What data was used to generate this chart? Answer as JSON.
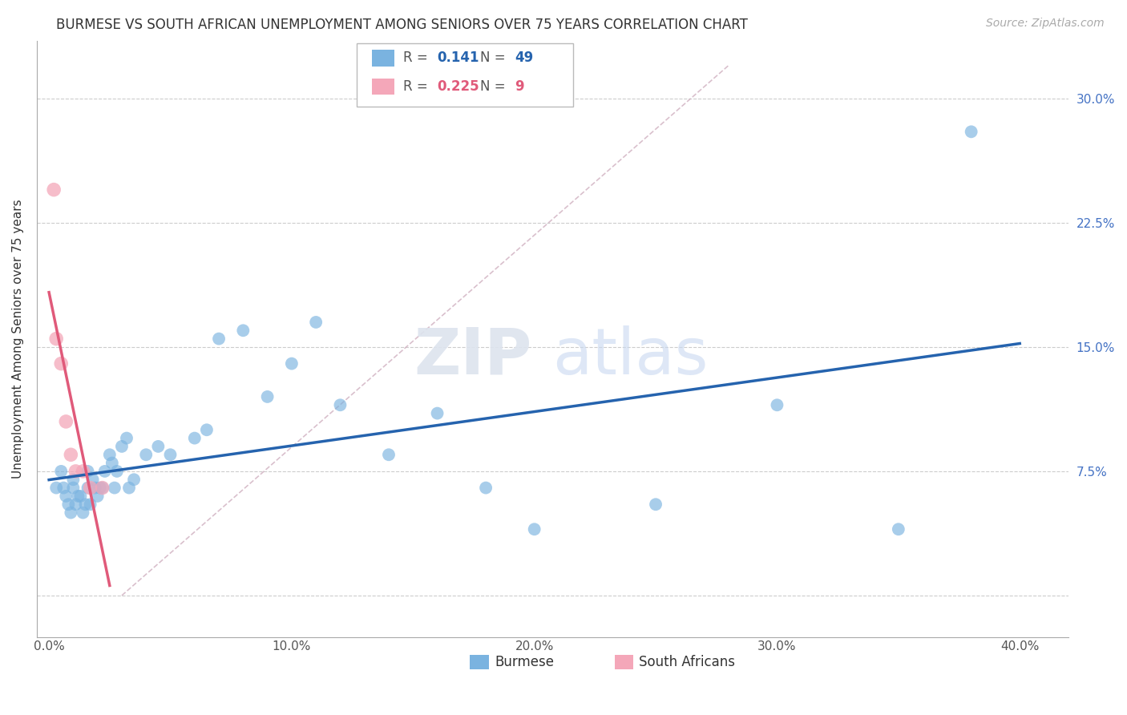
{
  "title": "BURMESE VS SOUTH AFRICAN UNEMPLOYMENT AMONG SENIORS OVER 75 YEARS CORRELATION CHART",
  "source": "Source: ZipAtlas.com",
  "ylabel": "Unemployment Among Seniors over 75 years",
  "x_ticks": [
    0.0,
    0.1,
    0.2,
    0.3,
    0.4
  ],
  "x_tick_labels": [
    "0.0%",
    "10.0%",
    "20.0%",
    "30.0%",
    "40.0%"
  ],
  "y_ticks": [
    0.0,
    0.075,
    0.15,
    0.225,
    0.3
  ],
  "y_tick_labels": [
    "",
    "7.5%",
    "15.0%",
    "22.5%",
    "30.0%"
  ],
  "xlim": [
    -0.005,
    0.42
  ],
  "ylim": [
    -0.025,
    0.335
  ],
  "R_burmese": 0.141,
  "N_burmese": 49,
  "R_south_african": 0.225,
  "N_south_african": 9,
  "burmese_color": "#7ab3e0",
  "south_african_color": "#f4a7b9",
  "burmese_line_color": "#2563ae",
  "south_african_line_color": "#e05a7a",
  "diagonal_color": "#d0b0c0",
  "watermark_zip": "ZIP",
  "watermark_atlas": "atlas",
  "background_color": "#ffffff",
  "burmese_x": [
    0.003,
    0.005,
    0.006,
    0.007,
    0.008,
    0.009,
    0.01,
    0.01,
    0.011,
    0.012,
    0.013,
    0.014,
    0.015,
    0.016,
    0.016,
    0.017,
    0.018,
    0.019,
    0.02,
    0.021,
    0.022,
    0.023,
    0.025,
    0.026,
    0.027,
    0.028,
    0.03,
    0.032,
    0.033,
    0.035,
    0.04,
    0.045,
    0.05,
    0.06,
    0.065,
    0.07,
    0.08,
    0.09,
    0.1,
    0.11,
    0.12,
    0.14,
    0.16,
    0.18,
    0.2,
    0.25,
    0.3,
    0.35,
    0.38
  ],
  "burmese_y": [
    0.065,
    0.075,
    0.065,
    0.06,
    0.055,
    0.05,
    0.07,
    0.065,
    0.055,
    0.06,
    0.06,
    0.05,
    0.055,
    0.065,
    0.075,
    0.055,
    0.07,
    0.065,
    0.06,
    0.065,
    0.065,
    0.075,
    0.085,
    0.08,
    0.065,
    0.075,
    0.09,
    0.095,
    0.065,
    0.07,
    0.085,
    0.09,
    0.085,
    0.095,
    0.1,
    0.155,
    0.16,
    0.12,
    0.14,
    0.165,
    0.115,
    0.085,
    0.11,
    0.065,
    0.04,
    0.055,
    0.115,
    0.04,
    0.28
  ],
  "south_african_x": [
    0.002,
    0.003,
    0.005,
    0.007,
    0.009,
    0.011,
    0.014,
    0.017,
    0.022
  ],
  "south_african_y": [
    0.245,
    0.155,
    0.14,
    0.105,
    0.085,
    0.075,
    0.075,
    0.065,
    0.065
  ]
}
